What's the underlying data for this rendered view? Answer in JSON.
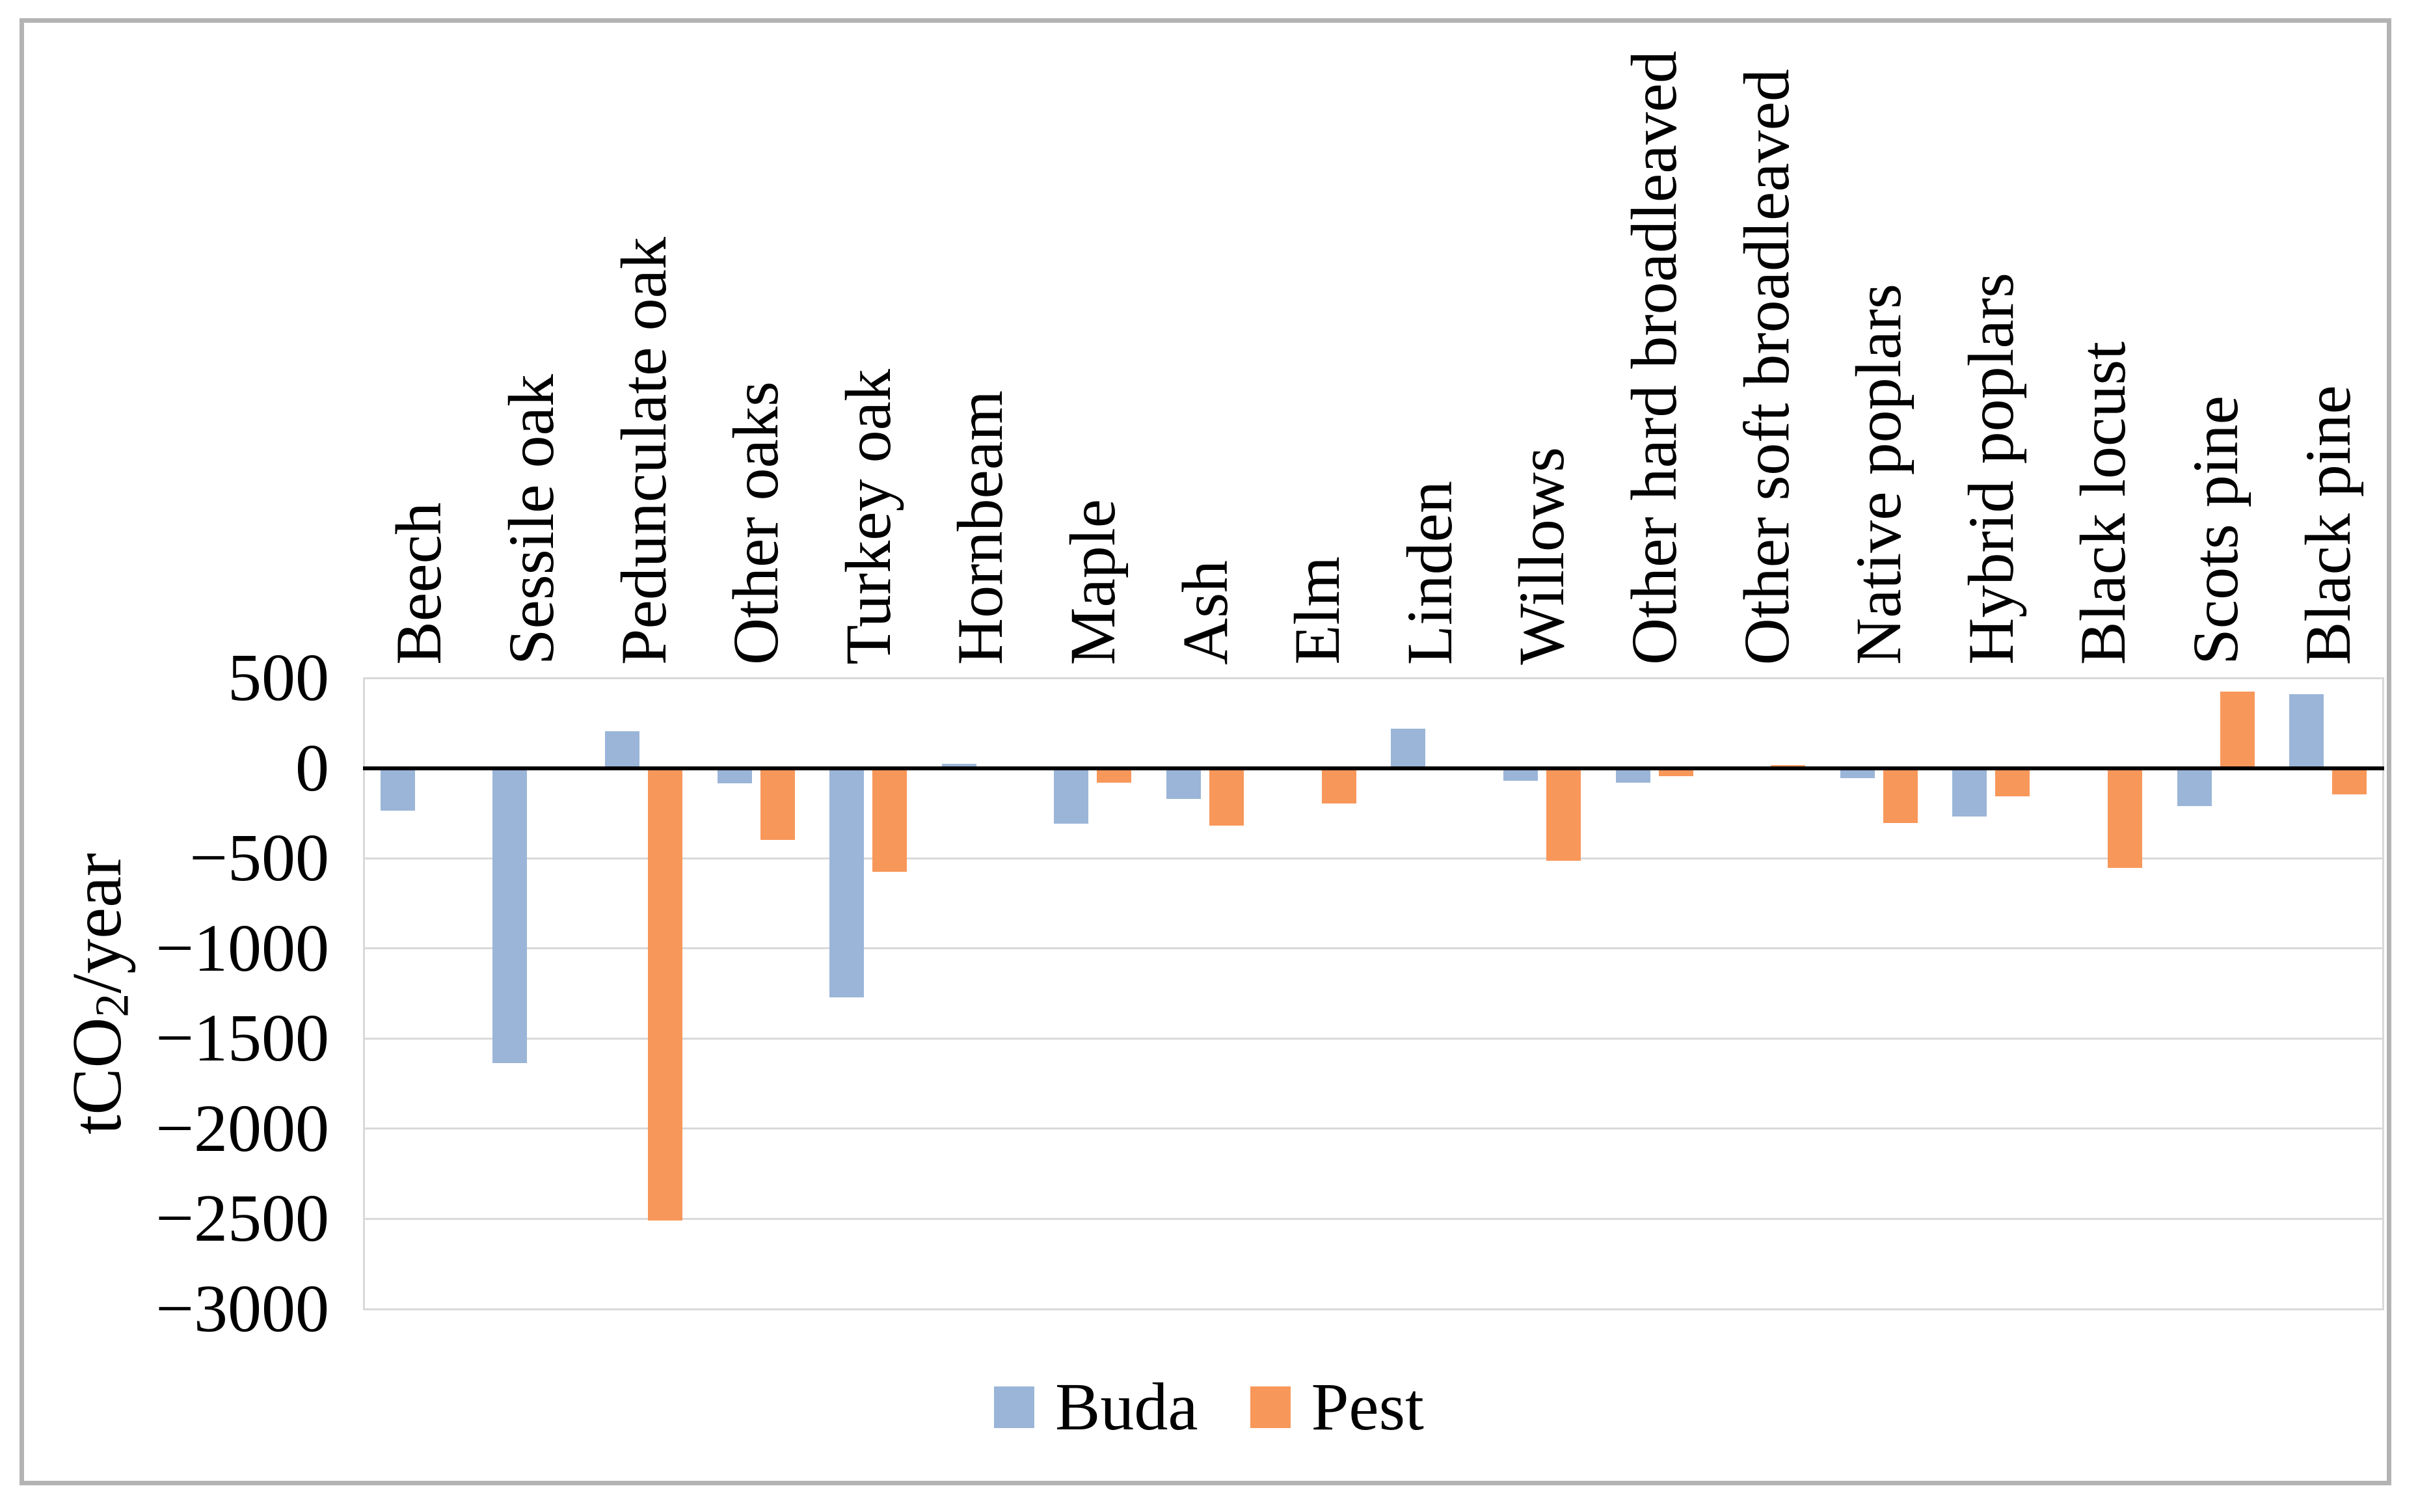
{
  "y_axis": {
    "title_prefix": "tCO",
    "title_sub": "2",
    "title_suffix": "/year",
    "ticks": [
      "500",
      "0",
      "−500",
      "−1000",
      "−1500",
      "−2000",
      "−2500",
      "−3000"
    ],
    "tick_values": [
      500,
      0,
      -500,
      -1000,
      -1500,
      -2000,
      -2500,
      -3000
    ]
  },
  "legend": {
    "items": [
      {
        "label": "Buda",
        "color": "#9ab5d8"
      },
      {
        "label": "Pest",
        "color": "#f8975a"
      }
    ]
  },
  "colors": {
    "buda": "#9ab5d8",
    "pest": "#f8975a",
    "gridline": "#d9d9d9",
    "axis_line": "#000000",
    "frame_border": "#b3b3b3"
  },
  "chart_data": {
    "type": "bar",
    "title": "",
    "xlabel": "",
    "ylabel": "tCO2/year",
    "ylim": [
      -3000,
      500
    ],
    "y_step": 500,
    "grid": true,
    "legend_position": "bottom",
    "categories": [
      "Beech",
      "Sessile oak",
      "Pedunculate oak",
      "Other oaks",
      "Turkey oak",
      "Hornbeam",
      "Maple",
      "Ash",
      "Elm",
      "Linden",
      "Willows",
      "Other hard broadleaved",
      "Other soft broadleaved",
      "Native poplars",
      "Hybrid poplars",
      "Black locust",
      "Scots pine",
      "Black pine"
    ],
    "series": [
      {
        "name": "Buda",
        "color": "#9ab5d8",
        "values": [
          -235,
          -1635,
          205,
          -85,
          -1270,
          25,
          -310,
          -170,
          null,
          220,
          -70,
          -80,
          null,
          -55,
          -270,
          null,
          -210,
          410
        ]
      },
      {
        "name": "Pest",
        "color": "#f8975a",
        "values": [
          null,
          null,
          -2510,
          -400,
          -575,
          null,
          -80,
          -320,
          -195,
          null,
          -515,
          -45,
          15,
          -305,
          -155,
          -555,
          425,
          -145
        ]
      }
    ]
  }
}
